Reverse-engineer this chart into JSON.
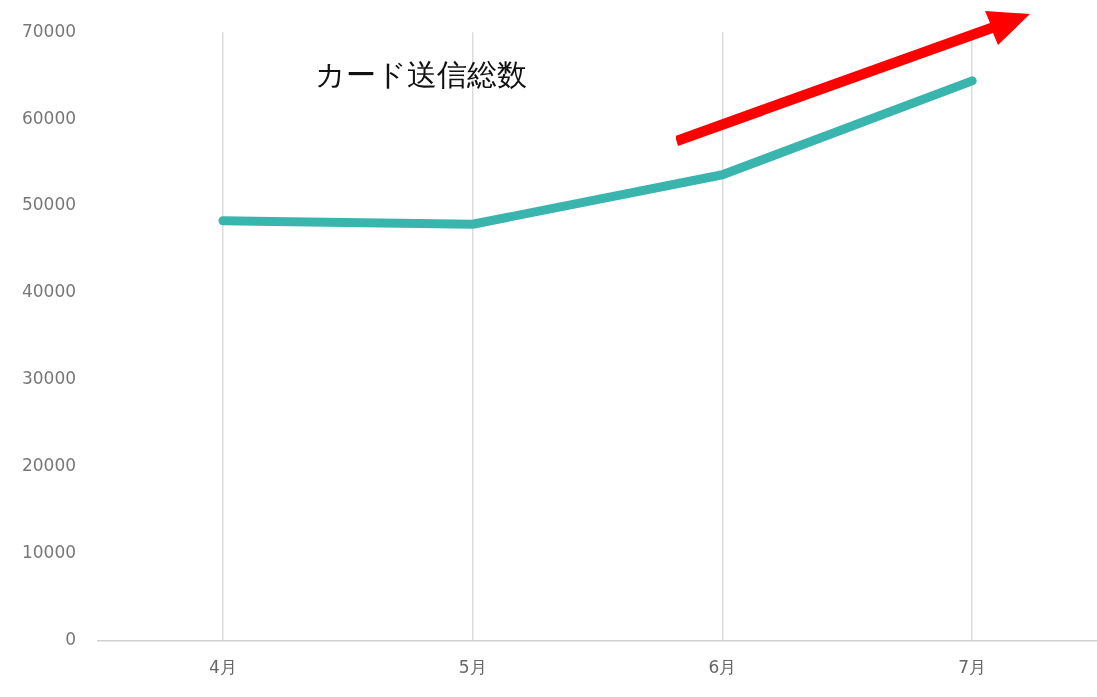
{
  "chart_data": {
    "type": "line",
    "title": "カード送信総数",
    "categories": [
      "4月",
      "5月",
      "6月",
      "7月"
    ],
    "series": [
      {
        "color": "#3ab5ad",
        "values": [
          48300,
          47900,
          53600,
          64400
        ]
      }
    ],
    "ylim": [
      0,
      70000
    ],
    "yticks": [
      0,
      10000,
      20000,
      30000,
      40000,
      50000,
      60000,
      70000
    ],
    "grid": "x",
    "legend": false,
    "marker": "none",
    "line_style": "solid"
  }
}
